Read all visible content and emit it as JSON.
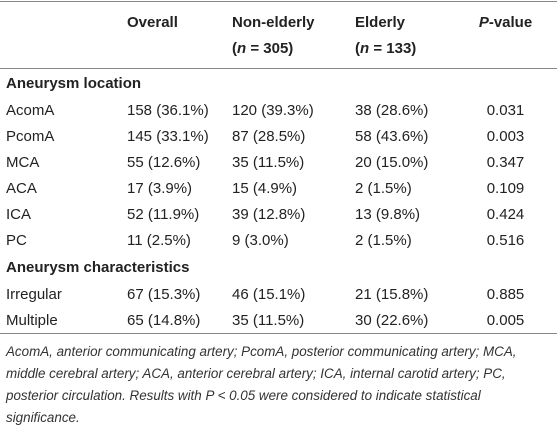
{
  "table": {
    "header": [
      {
        "line1": [
          "Overall"
        ]
      },
      {
        "line1": [
          "Non-elderly"
        ],
        "line2": [
          "(",
          "n",
          " = 305)"
        ]
      },
      {
        "line1": [
          "Elderly"
        ],
        "line2": [
          "(",
          "n",
          " = 133)"
        ]
      },
      {
        "line1": [
          "P",
          "-value"
        ]
      }
    ],
    "sections": [
      {
        "title": "Aneurysm location",
        "rows": [
          [
            "AcomA",
            "158 (36.1%)",
            "120 (39.3%)",
            "38 (28.6%)",
            "0.031"
          ],
          [
            "PcomA",
            "145 (33.1%)",
            "87 (28.5%)",
            "58 (43.6%)",
            "0.003"
          ],
          [
            "MCA",
            "55 (12.6%)",
            "35 (11.5%)",
            "20 (15.0%)",
            "0.347"
          ],
          [
            "ACA",
            "17 (3.9%)",
            "15 (4.9%)",
            "2 (1.5%)",
            "0.109"
          ],
          [
            "ICA",
            "52 (11.9%)",
            "39 (12.8%)",
            "13 (9.8%)",
            "0.424"
          ],
          [
            "PC",
            "11 (2.5%)",
            "9 (3.0%)",
            "2 (1.5%)",
            "0.516"
          ]
        ]
      },
      {
        "title": "Aneurysm characteristics",
        "rows": [
          [
            "Irregular",
            "67 (15.3%)",
            "46 (15.1%)",
            "21 (15.8%)",
            "0.885"
          ],
          [
            "Multiple",
            "65 (14.8%)",
            "35 (11.5%)",
            "30 (22.6%)",
            "0.005"
          ]
        ]
      }
    ]
  },
  "footnote": "AcomA, anterior communicating artery; PcomA, posterior communicating artery; MCA, middle cerebral artery; ACA, anterior cerebral artery; ICA, internal carotid artery; PC, posterior circulation. Results with P < 0.05 were considered to indicate statistical significance."
}
